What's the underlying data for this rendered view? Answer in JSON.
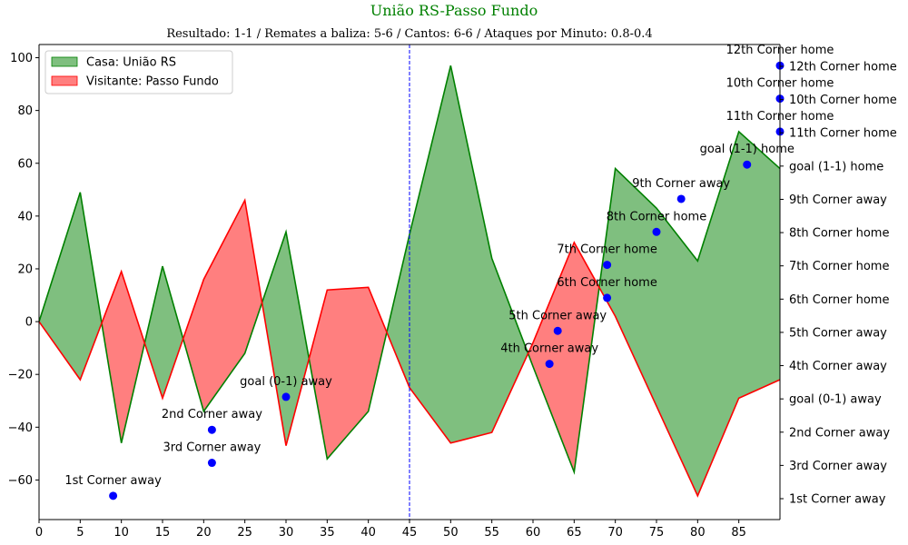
{
  "chart_data": {
    "type": "area",
    "title": "União RS-Passo Fundo",
    "subtitle": "Resultado: 1-1 / Remates a baliza: 5-6 / Cantos: 6-6 / Ataques por Minuto: 0.8-0.4",
    "xlabel": "",
    "ylabel": "",
    "xlim": [
      0,
      90
    ],
    "ylim": [
      -75,
      105
    ],
    "x_ticks": [
      0,
      5,
      10,
      15,
      20,
      25,
      30,
      35,
      40,
      45,
      50,
      55,
      60,
      65,
      70,
      75,
      80,
      85
    ],
    "y_ticks": [
      -60,
      -40,
      -20,
      0,
      20,
      40,
      60,
      80,
      100
    ],
    "grid": false,
    "legend_position": "top-left",
    "halftime_line_x": 45,
    "colors": {
      "home_fill": "#7fbf7f",
      "home_line": "#008000",
      "away_fill": "#ff7f7f",
      "away_line": "#ff0000",
      "event_marker": "#0000ff",
      "halftime_line": "#0000ff",
      "title": "#008000"
    },
    "x": [
      0,
      5,
      10,
      15,
      20,
      25,
      30,
      35,
      40,
      45,
      50,
      55,
      60,
      65,
      70,
      75,
      80,
      85,
      90
    ],
    "series": [
      {
        "name": "Casa: União RS",
        "values": [
          0,
          49,
          -46,
          21,
          -34,
          -12,
          34,
          -52,
          -34,
          33,
          97,
          24,
          -17,
          -57,
          58,
          43,
          23,
          72,
          58
        ]
      },
      {
        "name": "Visitante: Passo Fundo",
        "values": [
          0,
          -22,
          19,
          -29,
          16,
          46,
          -47,
          12,
          13,
          -25,
          -46,
          -42,
          -8,
          30,
          2,
          -32,
          -66,
          -29,
          -22
        ]
      }
    ],
    "events": [
      {
        "label": "1st Corner away",
        "x": 9,
        "y": -66
      },
      {
        "label": "2nd Corner away",
        "x": 21,
        "y": -41
      },
      {
        "label": "3rd Corner away",
        "x": 21,
        "y": -53.5
      },
      {
        "label": "goal (0-1) away",
        "x": 30,
        "y": -28.5
      },
      {
        "label": "4th Corner away",
        "x": 62,
        "y": -16
      },
      {
        "label": "5th Corner away",
        "x": 63,
        "y": -3.5
      },
      {
        "label": "6th Corner home",
        "x": 69,
        "y": 9
      },
      {
        "label": "7th Corner home",
        "x": 69,
        "y": 21.5
      },
      {
        "label": "8th Corner home",
        "x": 75,
        "y": 34
      },
      {
        "label": "9th Corner away",
        "x": 78,
        "y": 46.5
      },
      {
        "label": "goal (1-1) home",
        "x": 86,
        "y": 59.5
      },
      {
        "label": "11th Corner home",
        "x": 90,
        "y": 72
      },
      {
        "label": "10th Corner home",
        "x": 90,
        "y": 84.5
      },
      {
        "label": "12th Corner home",
        "x": 90,
        "y": 97
      }
    ],
    "right_axis_labels": [
      "1st Corner away",
      "3rd Corner away",
      "2nd Corner away",
      "goal (0-1) away",
      "4th Corner away",
      "5th Corner away",
      "6th Corner home",
      "7th Corner home",
      "8th Corner home",
      "9th Corner away",
      "goal (1-1) home",
      "11th Corner home",
      "10th Corner home",
      "12th Corner home"
    ]
  }
}
